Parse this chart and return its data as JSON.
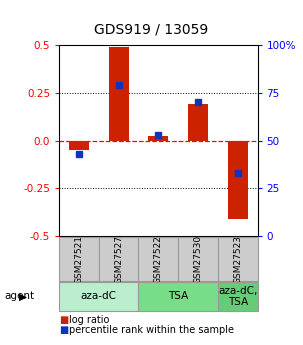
{
  "title": "GDS919 / 13059",
  "samples": [
    "GSM27521",
    "GSM27527",
    "GSM27522",
    "GSM27530",
    "GSM27523"
  ],
  "log_ratios": [
    -0.05,
    0.49,
    0.025,
    0.19,
    -0.41
  ],
  "percentile_ranks": [
    43,
    79,
    53,
    70,
    33
  ],
  "agents": [
    {
      "label": "aza-dC",
      "span": [
        0,
        2
      ]
    },
    {
      "label": "TSA",
      "span": [
        2,
        4
      ]
    },
    {
      "label": "aza-dC,\nTSA",
      "span": [
        4,
        5
      ]
    }
  ],
  "agent_colors": [
    "#bbeecc",
    "#77dd88",
    "#66cc77"
  ],
  "ylim": [
    -0.5,
    0.5
  ],
  "yticks_left": [
    -0.5,
    -0.25,
    0.0,
    0.25,
    0.5
  ],
  "yticks_right": [
    0,
    25,
    50,
    75,
    100
  ],
  "bar_color_red": "#cc2200",
  "bar_color_blue": "#1133bb",
  "title_fontsize": 10,
  "tick_fontsize": 7.5,
  "legend_fontsize": 7,
  "agent_label_fontsize": 7.5,
  "sample_label_fontsize": 6.5
}
